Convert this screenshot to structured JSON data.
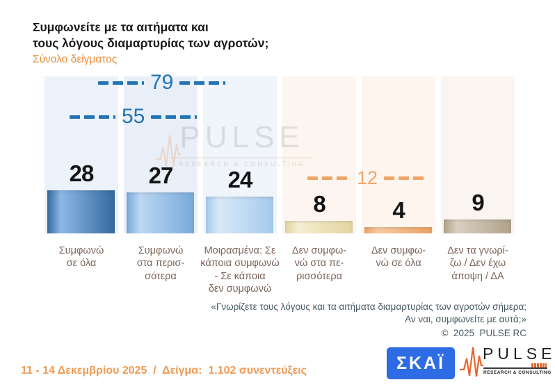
{
  "header": {
    "title": "Συμφωνείτε με τα αιτήματα και\nτους λόγους διαμαρτυρίας των αγροτών;",
    "subtitle": "Σύνολο δείγματος"
  },
  "chart_data": {
    "type": "bar",
    "title": "Συμφωνείτε με τα αιτήματα και τους λόγους διαμαρτυρίας των αγροτών;",
    "subtitle": "Σύνολο δείγματος",
    "categories": [
      "Συμφωνώ\nσε όλα",
      "Συμφωνώ\nστα περισ-\nσότερα",
      "Μοιρασμένα: Σε\nκάποια συμφωνώ\n- Σε κάποια\nδεν συμφωνώ",
      "Δεν συμφω-\nνώ στα πε-\nρισσότερα",
      "Δεν συμφω-\nνώ σε όλα",
      "Δεν τα γνωρί-\nζω / Δεν έχω\nάποψη / ΔΑ"
    ],
    "values": [
      28,
      27,
      24,
      8,
      4,
      9
    ],
    "xlabel": "",
    "ylabel": "",
    "ylim": [
      0,
      100
    ],
    "grid": false,
    "legend": false,
    "value_labels": true,
    "bar_colors": [
      {
        "dark": "#35689f",
        "light": "#8cb8e5"
      },
      {
        "dark": "#79a9da",
        "light": "#bcd7f2"
      },
      {
        "dark": "#a6c9eb",
        "light": "#d8e9f8"
      },
      {
        "dark": "#e3d5a2",
        "light": "#f4eed1"
      },
      {
        "dark": "#eba266",
        "light": "#f7cb9e"
      },
      {
        "dark": "#afa28a",
        "light": "#d9d0c1"
      }
    ],
    "column_bg": [
      "#ecf2f9",
      "#e8eff8",
      "#f0f5fb",
      "#fdf6f0",
      "#fdf5ee",
      "#fbf5f1"
    ],
    "annotations": [
      {
        "label": "79",
        "value": 79,
        "sum_of": "28+27+24",
        "color": "#2273b4"
      },
      {
        "label": "55",
        "value": 55,
        "sum_of": "28+27",
        "color": "#2273b4"
      },
      {
        "label": "12",
        "value": 12,
        "sum_of": "8+4",
        "color": "#efa566"
      }
    ]
  },
  "watermark": {
    "word": "PULSE",
    "tagline": "RESEARCH & CONSULTING"
  },
  "footnote": {
    "line1": "«Γνωρίζετε τους λόγους και τα αιτήματα διαμαρτυρίας των αγροτών σήμερα;",
    "line2": "Αν ναι, συμφωνείτε με αυτά;»",
    "line3": "©  2025  PULSE RC"
  },
  "footer": {
    "survey_info": "11 - 14 Δεκεμβρίου 2025  /  Δείγμα:  1.102 συνεντεύξεις"
  },
  "logos": {
    "skai_text": "ΣΚΑΪ",
    "pulse_text": "PULSE",
    "pulse_tagline": "RESEARCH & CONSULTING"
  },
  "colors": {
    "accent_orange": "#e8913d",
    "annotation_blue": "#2273b4",
    "annotation_orange": "#efa566",
    "category_label": "#7b6459",
    "footnote": "#475a64",
    "footer_orange": "#ee9c55",
    "skai_blue": "#2d6ce5",
    "pulse_ecg": "#e8642d"
  }
}
